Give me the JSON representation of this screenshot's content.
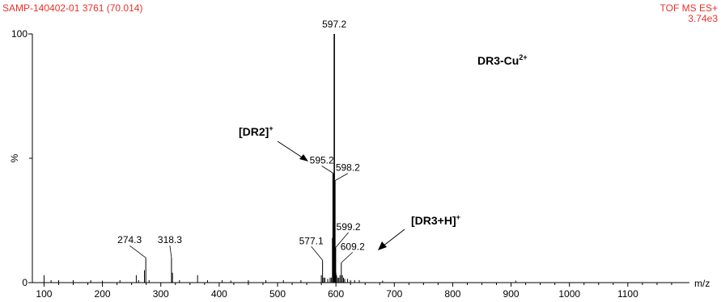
{
  "header": {
    "sample_id": "SAMP-140402-01 3761 (70.014)",
    "mode": "TOF MS ES+",
    "intensity": "3.74e3"
  },
  "annotations": {
    "compound": {
      "main": "DR3-Cu",
      "sup": "2+"
    },
    "dr2": {
      "main": "[DR2]",
      "sup": "+"
    },
    "dr3h": {
      "main": "[DR3+H]",
      "sup": "+"
    }
  },
  "colors": {
    "header": "#e8322a",
    "axis": "#000000",
    "peaks": "#000000"
  },
  "chart_data": {
    "type": "bar",
    "xlabel": "m/z",
    "ylabel": "%",
    "xlim": [
      80,
      1200
    ],
    "ylim": [
      0,
      100
    ],
    "x_ticks": [
      100,
      200,
      300,
      400,
      500,
      600,
      700,
      800,
      900,
      1000,
      1100
    ],
    "y_ticks": [
      0,
      100
    ],
    "grid": false,
    "legend": "none",
    "labeled_peaks": [
      {
        "mz": 274.3,
        "intensity": 10,
        "label": "274.3"
      },
      {
        "mz": 318.3,
        "intensity": 10,
        "label": "318.3"
      },
      {
        "mz": 577.1,
        "intensity": 9,
        "label": "577.1"
      },
      {
        "mz": 595.2,
        "intensity": 44,
        "label": "595.2"
      },
      {
        "mz": 597.2,
        "intensity": 100,
        "label": "597.2"
      },
      {
        "mz": 598.2,
        "intensity": 41,
        "label": "598.2"
      },
      {
        "mz": 599.2,
        "intensity": 14,
        "label": "599.2"
      },
      {
        "mz": 609.2,
        "intensity": 8,
        "label": "609.2"
      }
    ],
    "minor_peaks": [
      [
        100,
        3
      ],
      [
        112,
        1
      ],
      [
        125,
        1
      ],
      [
        150,
        1
      ],
      [
        180,
        1
      ],
      [
        200,
        0.8
      ],
      [
        230,
        1
      ],
      [
        258,
        3
      ],
      [
        262,
        1
      ],
      [
        272,
        5
      ],
      [
        280,
        1
      ],
      [
        320,
        4
      ],
      [
        332,
        1
      ],
      [
        363,
        3
      ],
      [
        380,
        1
      ],
      [
        405,
        1
      ],
      [
        420,
        0.8
      ],
      [
        450,
        1
      ],
      [
        480,
        1
      ],
      [
        510,
        1
      ],
      [
        540,
        1
      ],
      [
        575,
        3
      ],
      [
        579,
        2
      ],
      [
        581,
        2
      ],
      [
        586,
        1.5
      ],
      [
        590,
        2
      ],
      [
        592,
        2
      ],
      [
        594,
        18
      ],
      [
        596,
        14
      ],
      [
        600,
        4
      ],
      [
        601,
        3
      ],
      [
        603,
        2
      ],
      [
        605,
        2
      ],
      [
        607,
        3
      ],
      [
        611,
        3
      ],
      [
        613,
        2
      ],
      [
        615,
        1.5
      ],
      [
        620,
        1.5
      ],
      [
        625,
        1
      ],
      [
        632,
        1
      ],
      [
        640,
        1
      ],
      [
        680,
        0.8
      ],
      [
        908,
        0.8
      ]
    ]
  }
}
